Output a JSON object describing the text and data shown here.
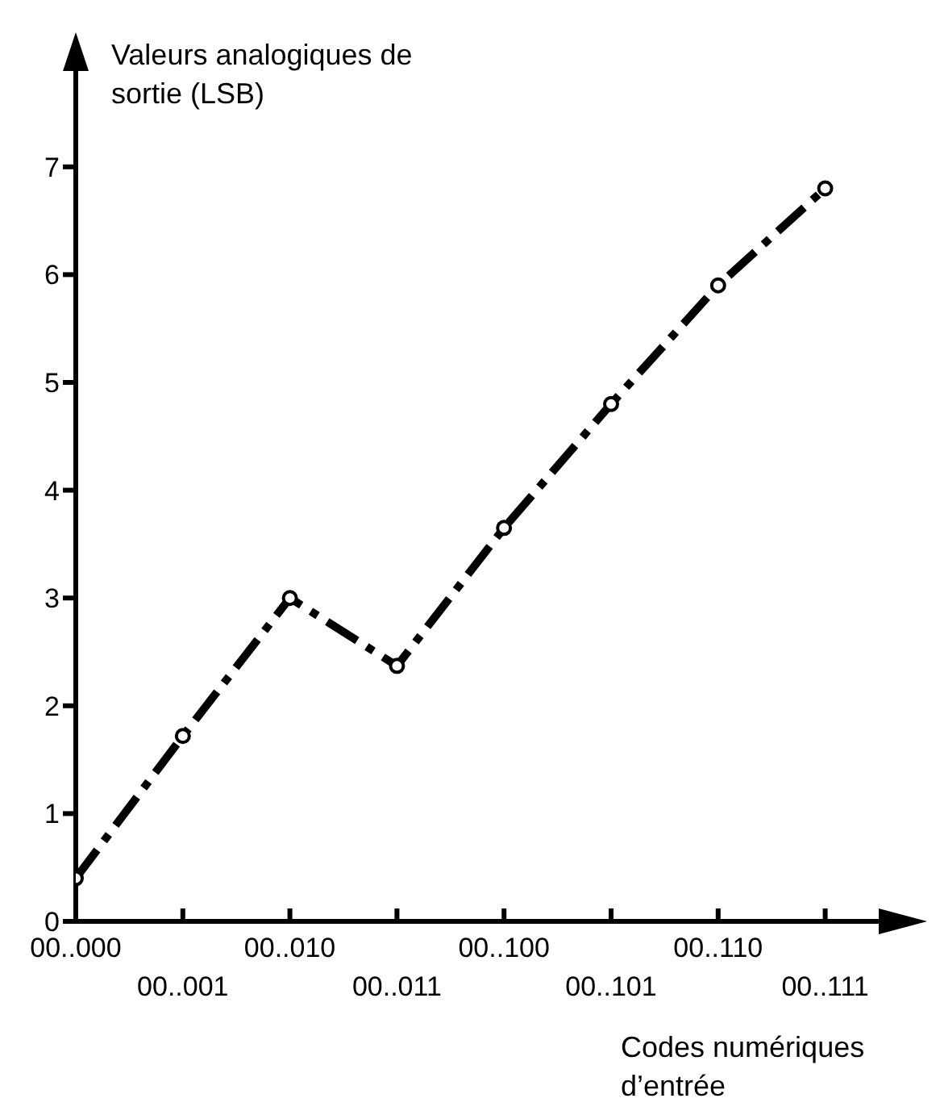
{
  "chart_data": {
    "type": "line",
    "ylabel": "Valeurs analogiques de sortie (LSB)",
    "xlabel": "Codes numériques d’entrée",
    "categories": [
      "00..000",
      "00..001",
      "00..010",
      "00..011",
      "00..100",
      "00..101",
      "00..110",
      "00..111"
    ],
    "series": [
      {
        "color": "#000000",
        "values": [
          0.4,
          1.72,
          3.0,
          2.37,
          3.65,
          4.8,
          5.9,
          6.8
        ]
      }
    ],
    "ylim": [
      0,
      7.5
    ],
    "yticks": [
      0,
      1,
      2,
      3,
      4,
      5,
      6,
      7
    ],
    "grid": false,
    "legend": false,
    "marker": "circle",
    "line_style": "dashed"
  }
}
